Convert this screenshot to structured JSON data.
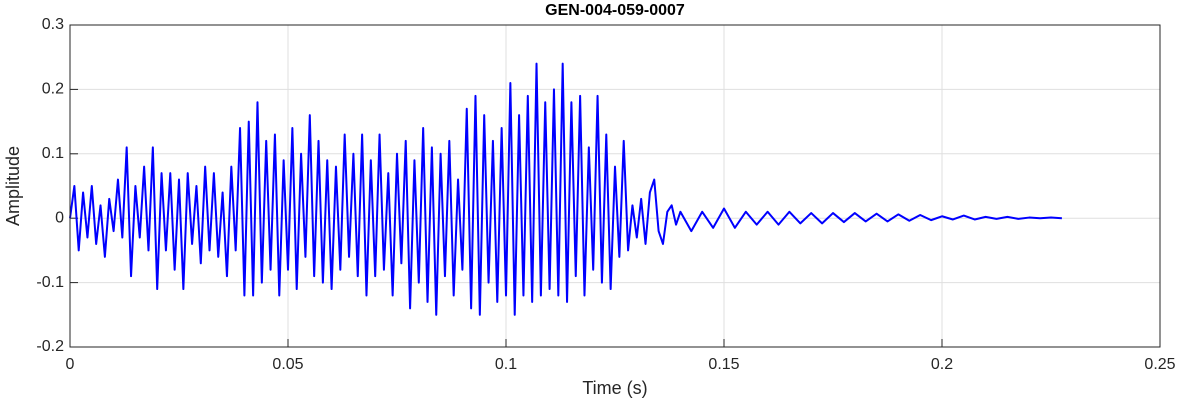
{
  "chart_data": {
    "type": "line",
    "title": "GEN-004-059-0007",
    "xlabel": "Time (s)",
    "ylabel": "Amplitude",
    "color": "#0000ff",
    "grid": true,
    "xlim": [
      0,
      0.25
    ],
    "xticks": [
      0,
      0.05,
      0.1,
      0.15,
      0.2,
      0.25
    ],
    "ylim": [
      -0.2,
      0.3
    ],
    "yticks": [
      -0.2,
      -0.1,
      0,
      0.1,
      0.2,
      0.3
    ],
    "x": [
      0,
      0.001,
      0.002,
      0.003,
      0.004,
      0.005,
      0.006,
      0.007,
      0.008,
      0.009,
      0.01,
      0.011,
      0.012,
      0.013,
      0.014,
      0.015,
      0.016,
      0.017,
      0.018,
      0.019,
      0.02,
      0.021,
      0.022,
      0.023,
      0.024,
      0.025,
      0.026,
      0.027,
      0.028,
      0.029,
      0.03,
      0.031,
      0.032,
      0.033,
      0.034,
      0.035,
      0.036,
      0.037,
      0.038,
      0.039,
      0.04,
      0.041,
      0.042,
      0.043,
      0.044,
      0.045,
      0.046,
      0.047,
      0.048,
      0.049,
      0.05,
      0.051,
      0.052,
      0.053,
      0.054,
      0.055,
      0.056,
      0.057,
      0.058,
      0.059,
      0.06,
      0.061,
      0.062,
      0.063,
      0.064,
      0.065,
      0.066,
      0.067,
      0.068,
      0.069,
      0.07,
      0.071,
      0.072,
      0.073,
      0.074,
      0.075,
      0.076,
      0.077,
      0.078,
      0.079,
      0.08,
      0.081,
      0.082,
      0.083,
      0.084,
      0.085,
      0.086,
      0.087,
      0.088,
      0.089,
      0.09,
      0.091,
      0.092,
      0.093,
      0.094,
      0.095,
      0.096,
      0.097,
      0.098,
      0.099,
      0.1,
      0.101,
      0.102,
      0.103,
      0.104,
      0.105,
      0.106,
      0.107,
      0.108,
      0.109,
      0.11,
      0.111,
      0.112,
      0.113,
      0.114,
      0.115,
      0.116,
      0.117,
      0.118,
      0.119,
      0.12,
      0.121,
      0.122,
      0.123,
      0.124,
      0.125,
      0.126,
      0.127,
      0.128,
      0.129,
      0.13,
      0.131,
      0.132,
      0.133,
      0.134,
      0.135,
      0.136,
      0.137,
      0.138,
      0.139,
      0.14,
      0.1425,
      0.145,
      0.1475,
      0.15,
      0.1525,
      0.155,
      0.1575,
      0.16,
      0.1625,
      0.165,
      0.1675,
      0.17,
      0.1725,
      0.175,
      0.1775,
      0.18,
      0.1825,
      0.185,
      0.1875,
      0.19,
      0.1925,
      0.195,
      0.1975,
      0.2,
      0.2025,
      0.205,
      0.2075,
      0.21,
      0.2125,
      0.215,
      0.2175,
      0.22,
      0.2225,
      0.225,
      0.2275
    ],
    "values": [
      0,
      0.05,
      -0.05,
      0.04,
      -0.03,
      0.05,
      -0.04,
      0.02,
      -0.06,
      0.03,
      -0.02,
      0.06,
      -0.03,
      0.11,
      -0.09,
      0.05,
      -0.03,
      0.08,
      -0.05,
      0.11,
      -0.11,
      0.07,
      -0.05,
      0.07,
      -0.08,
      0.06,
      -0.11,
      0.07,
      -0.04,
      0.05,
      -0.07,
      0.08,
      -0.05,
      0.07,
      -0.06,
      0.04,
      -0.09,
      0.08,
      -0.05,
      0.14,
      -0.12,
      0.15,
      -0.12,
      0.18,
      -0.1,
      0.12,
      -0.08,
      0.13,
      -0.12,
      0.09,
      -0.08,
      0.14,
      -0.11,
      0.1,
      -0.06,
      0.16,
      -0.09,
      0.12,
      -0.1,
      0.09,
      -0.11,
      0.08,
      -0.08,
      0.13,
      -0.06,
      0.1,
      -0.09,
      0.13,
      -0.12,
      0.09,
      -0.09,
      0.13,
      -0.08,
      0.07,
      -0.12,
      0.1,
      -0.07,
      0.12,
      -0.14,
      0.09,
      -0.1,
      0.14,
      -0.13,
      0.11,
      -0.15,
      0.1,
      -0.09,
      0.12,
      -0.12,
      0.06,
      -0.08,
      0.17,
      -0.14,
      0.19,
      -0.15,
      0.16,
      -0.1,
      0.12,
      -0.13,
      0.14,
      -0.12,
      0.21,
      -0.15,
      0.16,
      -0.12,
      0.19,
      -0.13,
      0.24,
      -0.12,
      0.18,
      -0.11,
      0.2,
      -0.12,
      0.24,
      -0.13,
      0.18,
      -0.09,
      0.19,
      -0.12,
      0.11,
      -0.08,
      0.19,
      -0.1,
      0.13,
      -0.11,
      0.08,
      -0.06,
      0.12,
      -0.05,
      0.02,
      -0.03,
      0.03,
      -0.04,
      0.04,
      0.06,
      -0.02,
      -0.04,
      0.01,
      0.02,
      -0.01,
      0.01,
      -0.02,
      0.01,
      -0.015,
      0.015,
      -0.015,
      0.01,
      -0.01,
      0.01,
      -0.01,
      0.01,
      -0.008,
      0.008,
      -0.008,
      0.008,
      -0.006,
      0.008,
      -0.005,
      0.007,
      -0.005,
      0.006,
      -0.004,
      0.005,
      -0.003,
      0.003,
      -0.002,
      0.004,
      -0.002,
      0.002,
      -0.001,
      0.002,
      -0.001,
      0.001,
      0,
      0.001,
      0
    ]
  }
}
